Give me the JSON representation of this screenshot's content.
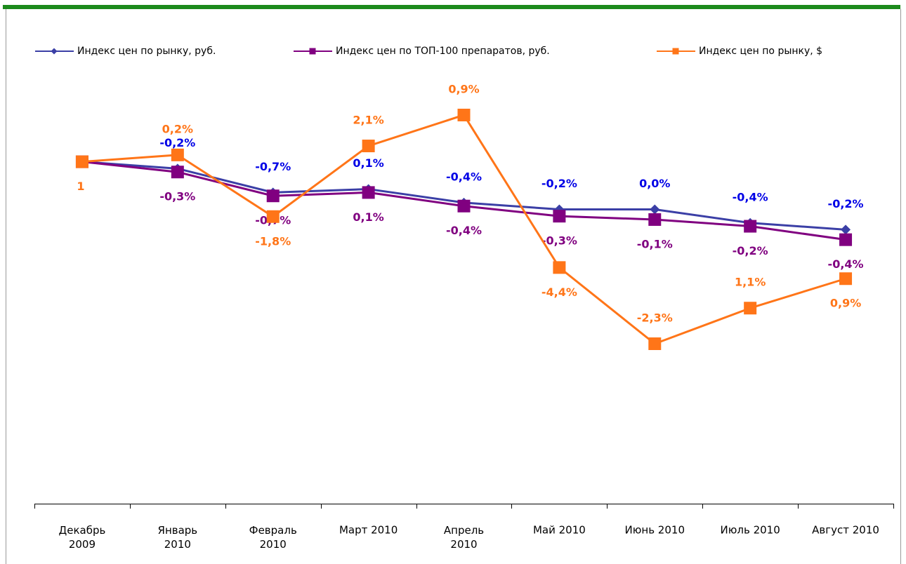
{
  "chart_data": {
    "type": "line",
    "categories": [
      "Декабрь\n2009",
      "Январь\n2010",
      "Февраль\n2010",
      "Март 2010",
      "Апрель\n2010",
      "Май 2010",
      "Июнь 2010",
      "Июль 2010",
      "Август 2010"
    ],
    "ylim": [
      0.9,
      1.035
    ],
    "legend": "top",
    "series": [
      {
        "name": "Индекс цен по рынку, руб.",
        "color": "#3b3fa6",
        "label_color": "#0000e6",
        "marker": "diamond",
        "values": [
          1,
          -0.2,
          -0.7,
          0.1,
          -0.4,
          -0.2,
          0.0,
          -0.4,
          -0.2
        ],
        "value_labels": [
          null,
          "-0,2%",
          "-0,7%",
          "0,1%",
          "-0,4%",
          "-0,2%",
          "0,0%",
          "-0,4%",
          "-0,2%"
        ]
      },
      {
        "name": "Индекс цен по ТОП-100 препаратов, руб.",
        "color": "#800080",
        "label_color": "#800080",
        "marker": "square",
        "values": [
          1,
          -0.3,
          -0.7,
          0.1,
          -0.4,
          -0.3,
          -0.1,
          -0.2,
          -0.4
        ],
        "value_labels": [
          null,
          "-0,3%",
          "-0,7%",
          "0,1%",
          "-0,4%",
          "-0,3%",
          "-0,1%",
          "-0,2%",
          "-0,4%"
        ]
      },
      {
        "name": "Индекс цен по рынку, $",
        "color": "#ff7518",
        "label_color": "#ff7518",
        "marker": "square",
        "values": [
          1,
          0.2,
          -1.8,
          2.1,
          0.9,
          -4.4,
          -2.3,
          1.1,
          0.9
        ],
        "value_labels": [
          "1",
          "0,2%",
          "-1,8%",
          "2,1%",
          "0,9%",
          "-4,4%",
          "-2,3%",
          "1,1%",
          "0,9%"
        ]
      }
    ]
  }
}
